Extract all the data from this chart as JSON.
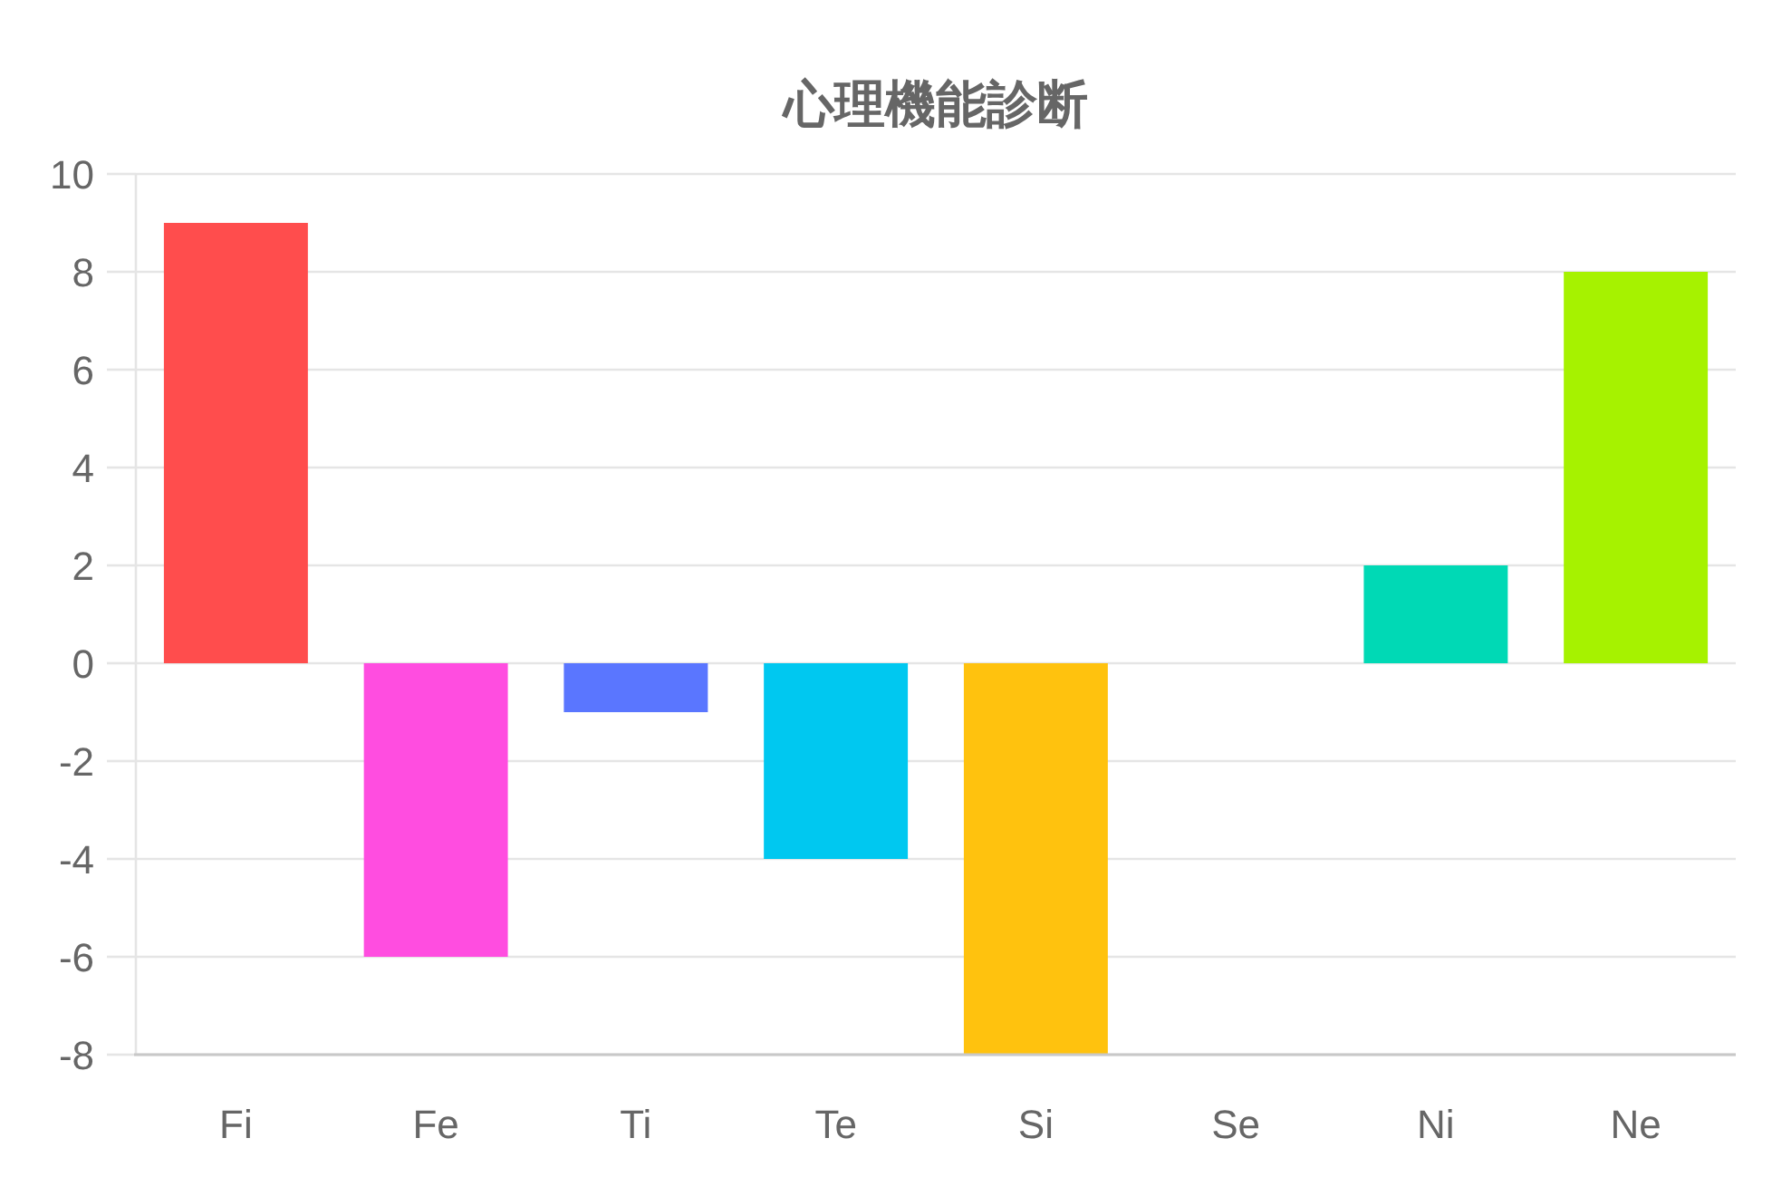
{
  "chart_data": {
    "type": "bar",
    "title": "心理機能診断",
    "categories": [
      "Fi",
      "Fe",
      "Ti",
      "Te",
      "Si",
      "Se",
      "Ni",
      "Ne"
    ],
    "values": [
      9,
      -6,
      -1,
      -4,
      -8,
      0,
      2,
      8
    ],
    "colors": [
      "#ff4d4d",
      "#ff4de0",
      "#5a76ff",
      "#00c8f0",
      "#ffc20e",
      null,
      "#00d9b5",
      "#a6f200"
    ],
    "ylim": [
      -8,
      10
    ],
    "yticks": [
      -8,
      -6,
      -4,
      -2,
      0,
      2,
      4,
      6,
      8,
      10
    ],
    "grid": "y"
  }
}
